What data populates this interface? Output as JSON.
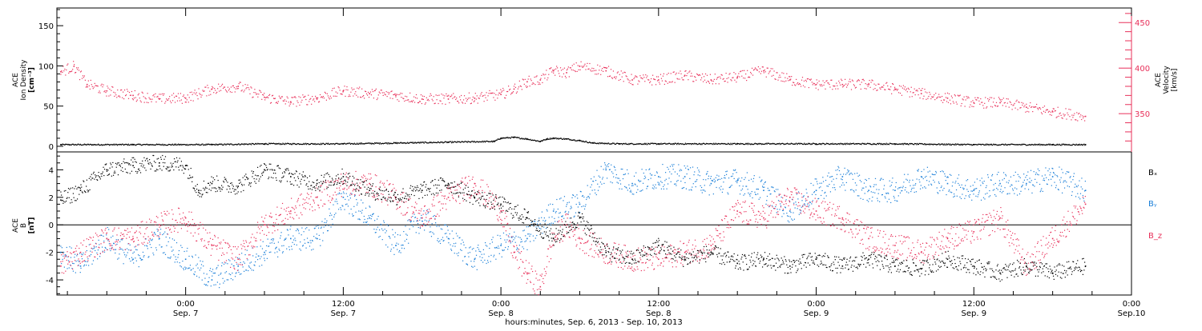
{
  "x_axis": {
    "title": "hours:minutes, Sep.  6, 2013 - Sep. 10, 2013",
    "ticks": [
      {
        "hours": 24,
        "time": "0:00",
        "date": "Sep. 7"
      },
      {
        "hours": 36,
        "time": "12:00",
        "date": "Sep. 7"
      },
      {
        "hours": 48,
        "time": "0:00",
        "date": "Sep. 8"
      },
      {
        "hours": 60,
        "time": "12:00",
        "date": "Sep. 8"
      },
      {
        "hours": 72,
        "time": "0:00",
        "date": "Sep. 9"
      },
      {
        "hours": 84,
        "time": "12:00",
        "date": "Sep. 9"
      },
      {
        "hours": 96,
        "time": "0:00",
        "date": "Sep.10"
      }
    ],
    "range_hours_since_sep6_0000": [
      14.2,
      96
    ]
  },
  "colors": {
    "black": "#000000",
    "pink": "#e8305a",
    "blue": "#1a7fd8"
  },
  "chart_data": [
    {
      "type": "scatter",
      "panel": "top",
      "ylabel_left": [
        "ACE",
        "Ion Density",
        "[cm⁻³]"
      ],
      "ylabel_right": [
        "ACE",
        "Velocity",
        "[km/s]"
      ],
      "ylim_left": [
        -7,
        172
      ],
      "ylim_right": [
        308,
        466
      ],
      "left_ticks": [
        0,
        50,
        100,
        150
      ],
      "right_ticks": [
        350,
        400,
        450
      ],
      "series": [
        {
          "name": "Ion Density",
          "axis": "left",
          "color": "#000000",
          "points_hours": [
            14.5,
            20,
            26,
            30,
            36,
            40,
            44,
            47.5,
            48,
            49,
            50,
            51,
            51.5,
            52,
            53,
            54,
            55,
            57,
            60,
            66,
            72,
            78,
            84,
            90,
            92.5
          ],
          "points_values": [
            2,
            2,
            2,
            3,
            3,
            4,
            5,
            6,
            10,
            11,
            9,
            6,
            9,
            10,
            9,
            7,
            4,
            3,
            3,
            3,
            3,
            3,
            2,
            2,
            2
          ]
        },
        {
          "name": "Velocity",
          "axis": "right",
          "color": "#e8305a",
          "points_hours": [
            14.5,
            15.5,
            16.5,
            18,
            20,
            22,
            24,
            26,
            28,
            30,
            32,
            34,
            36,
            38,
            40,
            42,
            44,
            46,
            48,
            49,
            50,
            51,
            52,
            53,
            54,
            56,
            58,
            60,
            62,
            64,
            66,
            68,
            70,
            72,
            74,
            76,
            78,
            80,
            82,
            84,
            86,
            88,
            90,
            92.5
          ],
          "points_values": [
            396,
            402,
            382,
            375,
            370,
            366,
            367,
            377,
            380,
            368,
            363,
            367,
            375,
            372,
            370,
            366,
            366,
            367,
            371,
            377,
            385,
            387,
            397,
            395,
            402,
            397,
            387,
            387,
            392,
            387,
            390,
            397,
            387,
            382,
            382,
            382,
            377,
            372,
            367,
            362,
            362,
            357,
            352,
            347
          ]
        }
      ]
    },
    {
      "type": "scatter",
      "panel": "bottom",
      "ylabel_left": [
        "ACE",
        "B",
        "[nT]"
      ],
      "ylim": [
        -5.1,
        5.3
      ],
      "yticks": [
        -4,
        -2,
        0,
        2,
        4
      ],
      "series": [
        {
          "name": "Bₓ",
          "color": "#000000",
          "points_hours": [
            14.5,
            16,
            18,
            20,
            22,
            24,
            25,
            26,
            28,
            30,
            32,
            34,
            36,
            38,
            40,
            42,
            44,
            46,
            48,
            50,
            52,
            54,
            56,
            58,
            60,
            62,
            64,
            66,
            68,
            70,
            72,
            74,
            76,
            78,
            80,
            82,
            84,
            86,
            88,
            90,
            92.5
          ],
          "points_values": [
            1.8,
            2.5,
            4.0,
            4.3,
            4.5,
            4.3,
            2.5,
            3.0,
            2.8,
            4.0,
            3.5,
            3.0,
            3.5,
            2.5,
            2.0,
            2.5,
            3.0,
            2.0,
            1.5,
            0.5,
            -1.0,
            0.5,
            -2.0,
            -2.5,
            -1.5,
            -2.5,
            -2.0,
            -2.8,
            -2.5,
            -3.0,
            -2.5,
            -3.0,
            -2.5,
            -3.0,
            -3.2,
            -2.5,
            -3.0,
            -3.5,
            -3.0,
            -3.5,
            -3.0
          ]
        },
        {
          "name": "Bᵧ",
          "color": "#1a7fd8",
          "points_hours": [
            14.5,
            16,
            18,
            20,
            22,
            24,
            26,
            28,
            30,
            32,
            34,
            36,
            38,
            40,
            42,
            44,
            46,
            48,
            50,
            52,
            54,
            56,
            58,
            60,
            62,
            64,
            66,
            68,
            70,
            72,
            74,
            76,
            78,
            80,
            82,
            84,
            86,
            88,
            90,
            92.5
          ],
          "points_values": [
            -2.0,
            -3.0,
            -1.0,
            -2.5,
            -1.0,
            -2.5,
            -4.0,
            -3.0,
            -2.0,
            -1.0,
            -1.0,
            2.0,
            0.5,
            -1.5,
            0.5,
            -1.0,
            -2.5,
            -1.5,
            -1.0,
            1.0,
            1.5,
            4.0,
            3.0,
            3.5,
            3.5,
            3.0,
            3.2,
            2.5,
            1.0,
            2.5,
            3.5,
            2.5,
            2.5,
            3.5,
            3.0,
            2.5,
            3.0,
            3.0,
            3.5,
            2.5
          ]
        },
        {
          "name": "B_z",
          "color": "#e8305a",
          "points_hours": [
            14.5,
            16,
            18,
            20,
            22,
            24,
            26,
            28,
            30,
            32,
            34,
            36,
            38,
            40,
            42,
            44,
            46,
            48,
            49,
            50,
            51,
            52,
            53,
            54,
            56,
            58,
            60,
            62,
            64,
            66,
            68,
            70,
            72,
            74,
            76,
            78,
            80,
            82,
            84,
            86,
            88,
            90,
            92.5
          ],
          "points_values": [
            -3.0,
            -2.0,
            -1.0,
            -1.0,
            0.0,
            0.5,
            -1.5,
            -2.5,
            0.0,
            1.0,
            2.0,
            3.0,
            3.0,
            2.0,
            0.5,
            2.0,
            3.0,
            1.0,
            -2.0,
            -3.5,
            -4.5,
            -1.0,
            0.0,
            -1.0,
            -2.0,
            -2.5,
            -2.5,
            -2.0,
            -1.5,
            1.0,
            0.5,
            2.0,
            1.0,
            0.5,
            -1.0,
            -1.5,
            -2.0,
            -1.0,
            -0.5,
            0.5,
            -3.0,
            -1.0,
            1.5
          ]
        }
      ]
    }
  ]
}
